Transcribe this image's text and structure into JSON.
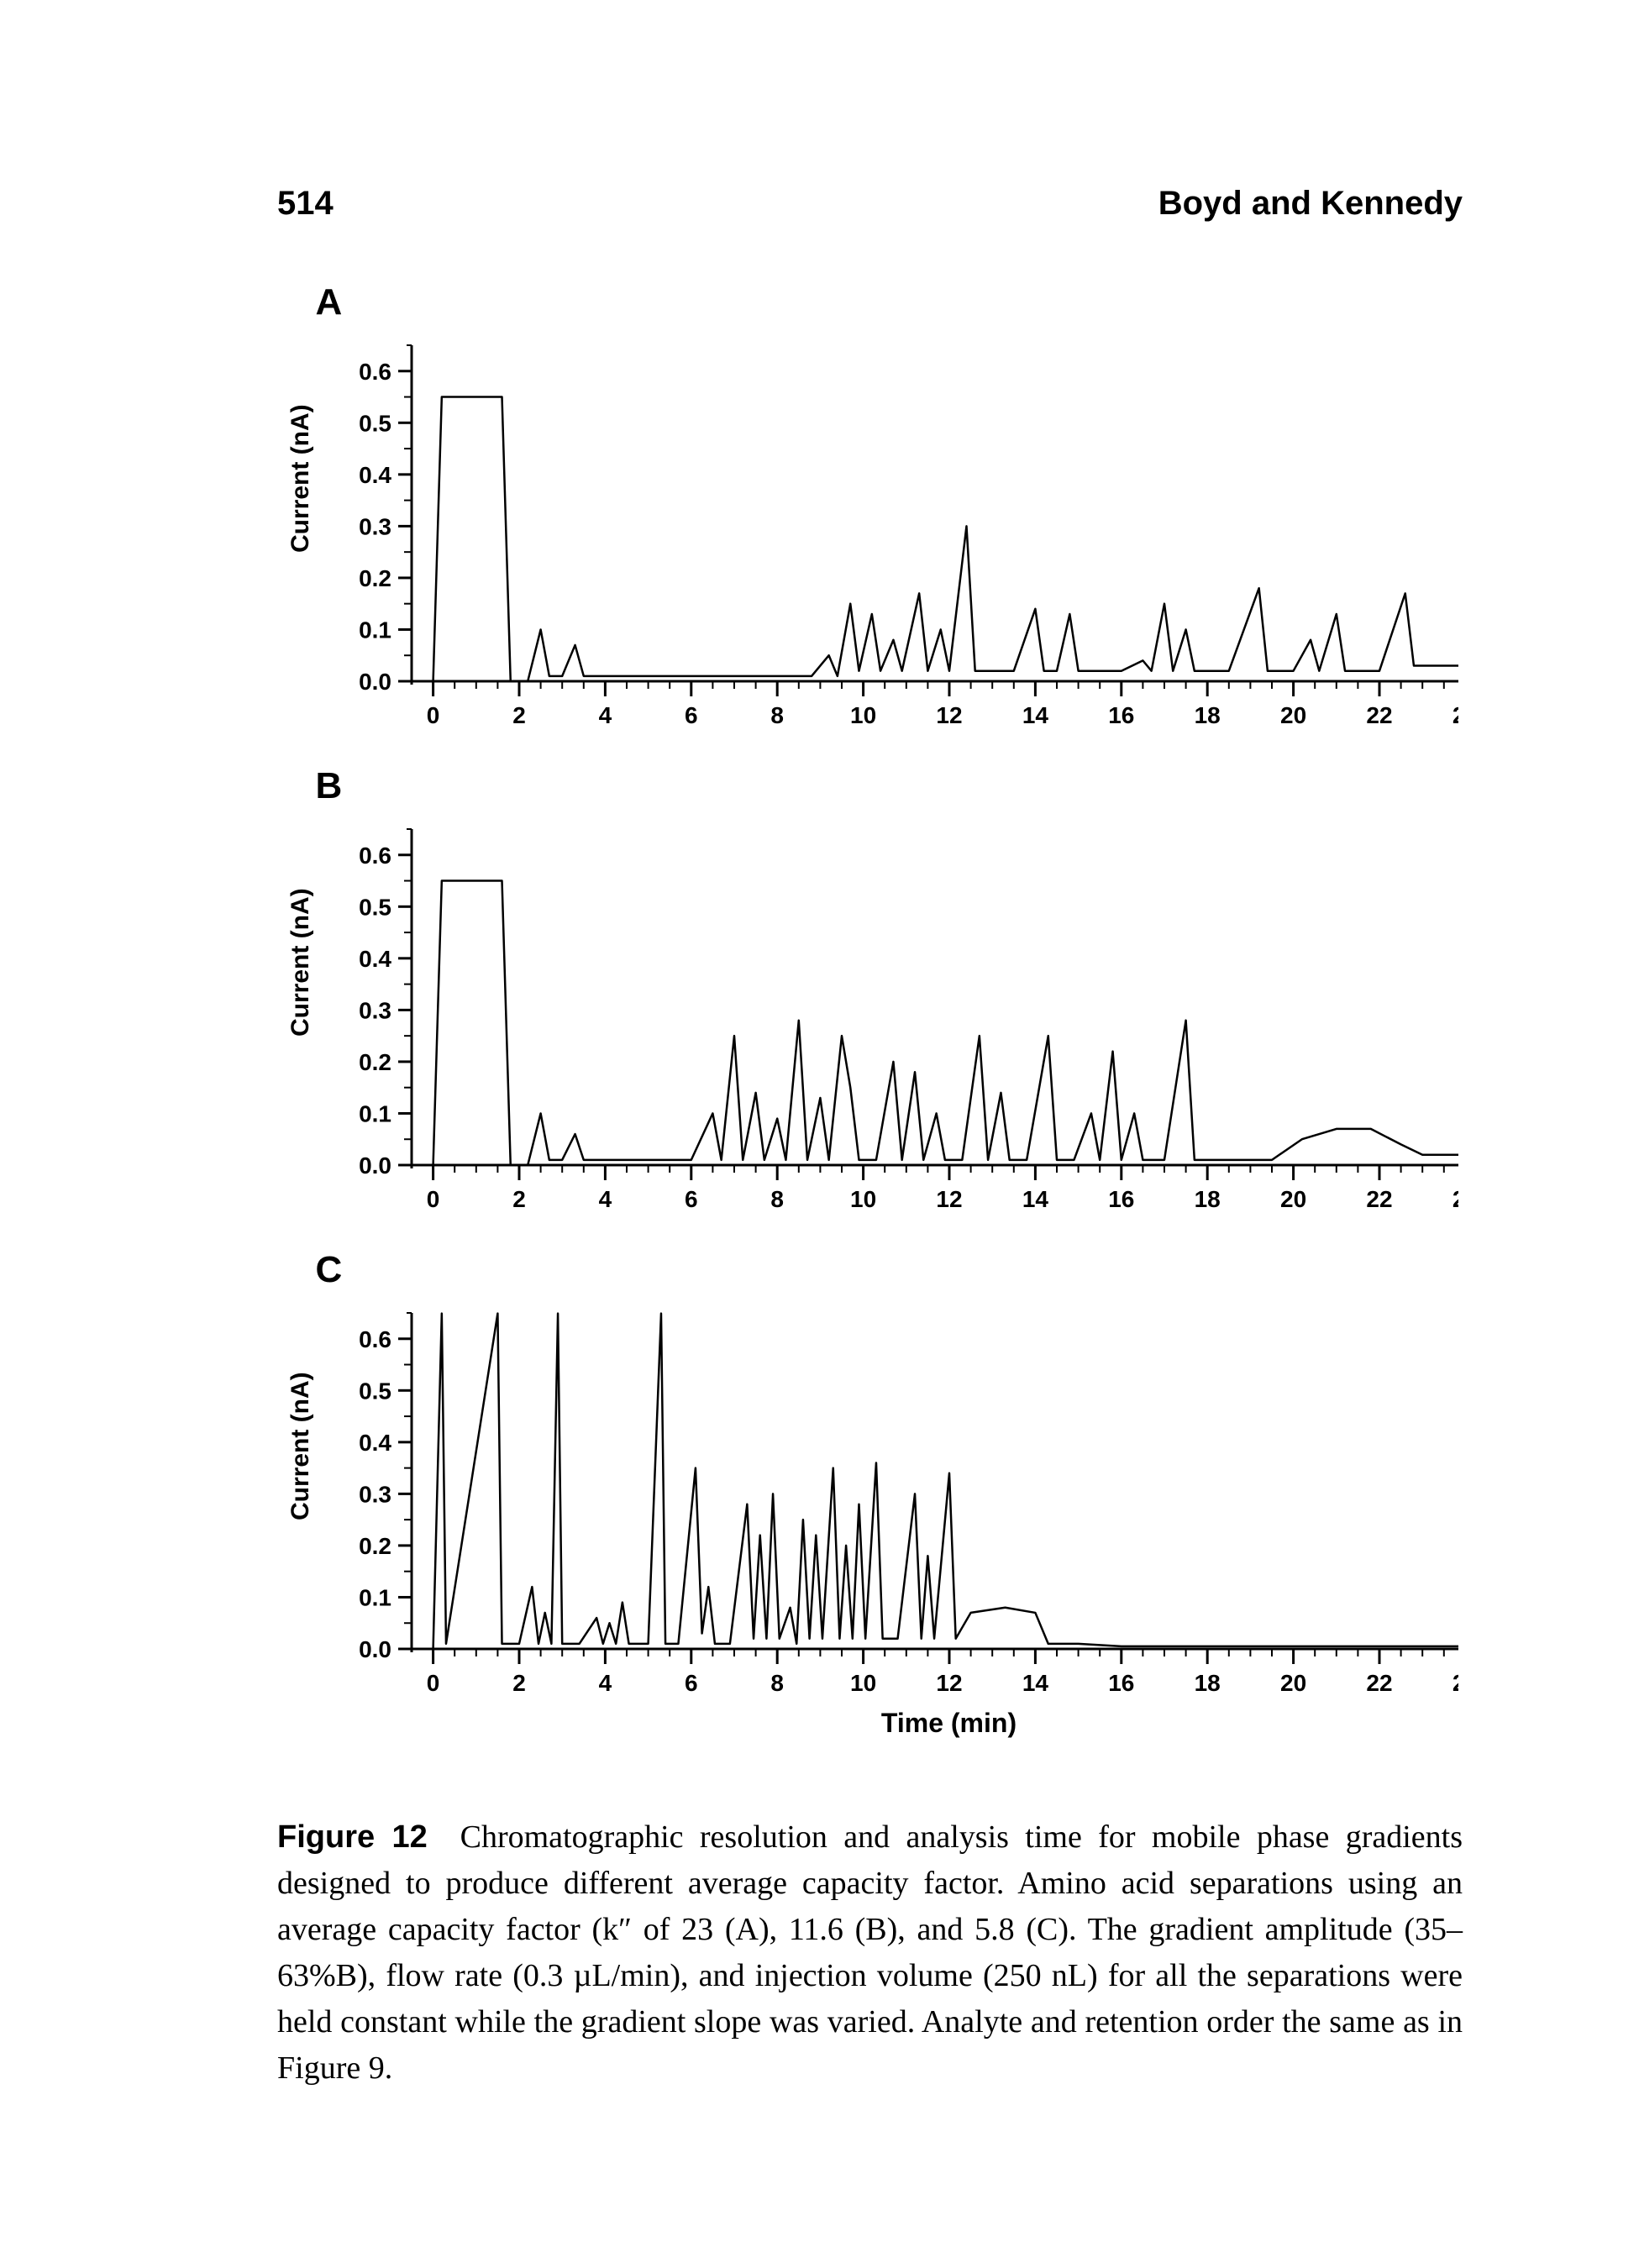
{
  "header": {
    "page_number": "514",
    "running_head": "Boyd and Kennedy"
  },
  "figure": {
    "x_axis_label": "Time (min)",
    "y_axis_label": "Current (nA)",
    "stroke_color": "#000000",
    "background_color": "#ffffff",
    "axis_width": 3,
    "trace_width": 2.5,
    "label_fontsize": 30,
    "tick_fontsize": 28,
    "panel_label_fontsize": 44,
    "x_axis": {
      "min": -0.5,
      "max": 24.5,
      "major_step": 2,
      "minor_step": 0.5
    },
    "y_axis": {
      "min": 0.0,
      "max": 0.65,
      "major_step": 0.1,
      "minor_step": 0.05
    },
    "panels": [
      {
        "label": "A",
        "trace": [
          [
            -0.3,
            0.0
          ],
          [
            0.0,
            0.0
          ],
          [
            0.2,
            0.55
          ],
          [
            1.6,
            0.55
          ],
          [
            1.8,
            0.0
          ],
          [
            2.2,
            0.0
          ],
          [
            2.5,
            0.1
          ],
          [
            2.7,
            0.01
          ],
          [
            3.0,
            0.01
          ],
          [
            3.3,
            0.07
          ],
          [
            3.5,
            0.01
          ],
          [
            4.0,
            0.01
          ],
          [
            5.0,
            0.01
          ],
          [
            6.0,
            0.01
          ],
          [
            7.0,
            0.01
          ],
          [
            8.0,
            0.01
          ],
          [
            8.8,
            0.01
          ],
          [
            9.2,
            0.05
          ],
          [
            9.4,
            0.01
          ],
          [
            9.7,
            0.15
          ],
          [
            9.9,
            0.02
          ],
          [
            10.2,
            0.13
          ],
          [
            10.4,
            0.02
          ],
          [
            10.7,
            0.08
          ],
          [
            10.9,
            0.02
          ],
          [
            11.3,
            0.17
          ],
          [
            11.5,
            0.02
          ],
          [
            11.8,
            0.1
          ],
          [
            12.0,
            0.02
          ],
          [
            12.4,
            0.3
          ],
          [
            12.6,
            0.02
          ],
          [
            13.0,
            0.02
          ],
          [
            13.5,
            0.02
          ],
          [
            14.0,
            0.14
          ],
          [
            14.2,
            0.02
          ],
          [
            14.5,
            0.02
          ],
          [
            14.8,
            0.13
          ],
          [
            15.0,
            0.02
          ],
          [
            15.5,
            0.02
          ],
          [
            16.0,
            0.02
          ],
          [
            16.5,
            0.04
          ],
          [
            16.7,
            0.02
          ],
          [
            17.0,
            0.15
          ],
          [
            17.2,
            0.02
          ],
          [
            17.5,
            0.1
          ],
          [
            17.7,
            0.02
          ],
          [
            18.0,
            0.02
          ],
          [
            18.5,
            0.02
          ],
          [
            19.2,
            0.18
          ],
          [
            19.4,
            0.02
          ],
          [
            20.0,
            0.02
          ],
          [
            20.4,
            0.08
          ],
          [
            20.6,
            0.02
          ],
          [
            21.0,
            0.13
          ],
          [
            21.2,
            0.02
          ],
          [
            21.6,
            0.02
          ],
          [
            22.0,
            0.02
          ],
          [
            22.6,
            0.17
          ],
          [
            22.8,
            0.03
          ],
          [
            23.4,
            0.03
          ],
          [
            24.0,
            0.03
          ],
          [
            24.3,
            0.03
          ]
        ]
      },
      {
        "label": "B",
        "trace": [
          [
            -0.3,
            0.0
          ],
          [
            0.0,
            0.0
          ],
          [
            0.2,
            0.55
          ],
          [
            1.6,
            0.55
          ],
          [
            1.8,
            0.0
          ],
          [
            2.2,
            0.0
          ],
          [
            2.5,
            0.1
          ],
          [
            2.7,
            0.01
          ],
          [
            3.0,
            0.01
          ],
          [
            3.3,
            0.06
          ],
          [
            3.5,
            0.01
          ],
          [
            4.0,
            0.01
          ],
          [
            5.0,
            0.01
          ],
          [
            6.0,
            0.01
          ],
          [
            6.5,
            0.1
          ],
          [
            6.7,
            0.01
          ],
          [
            7.0,
            0.25
          ],
          [
            7.2,
            0.01
          ],
          [
            7.5,
            0.14
          ],
          [
            7.7,
            0.01
          ],
          [
            8.0,
            0.09
          ],
          [
            8.2,
            0.01
          ],
          [
            8.5,
            0.28
          ],
          [
            8.7,
            0.01
          ],
          [
            9.0,
            0.13
          ],
          [
            9.2,
            0.01
          ],
          [
            9.5,
            0.25
          ],
          [
            9.7,
            0.15
          ],
          [
            9.9,
            0.01
          ],
          [
            10.3,
            0.01
          ],
          [
            10.7,
            0.2
          ],
          [
            10.9,
            0.01
          ],
          [
            11.2,
            0.18
          ],
          [
            11.4,
            0.01
          ],
          [
            11.7,
            0.1
          ],
          [
            11.9,
            0.01
          ],
          [
            12.3,
            0.01
          ],
          [
            12.7,
            0.25
          ],
          [
            12.9,
            0.01
          ],
          [
            13.2,
            0.14
          ],
          [
            13.4,
            0.01
          ],
          [
            13.8,
            0.01
          ],
          [
            14.3,
            0.25
          ],
          [
            14.5,
            0.01
          ],
          [
            14.9,
            0.01
          ],
          [
            15.3,
            0.1
          ],
          [
            15.5,
            0.01
          ],
          [
            15.8,
            0.22
          ],
          [
            16.0,
            0.01
          ],
          [
            16.3,
            0.1
          ],
          [
            16.5,
            0.01
          ],
          [
            17.0,
            0.01
          ],
          [
            17.5,
            0.28
          ],
          [
            17.7,
            0.01
          ],
          [
            18.2,
            0.01
          ],
          [
            19.0,
            0.01
          ],
          [
            19.5,
            0.01
          ],
          [
            20.2,
            0.05
          ],
          [
            21.0,
            0.07
          ],
          [
            21.8,
            0.07
          ],
          [
            22.5,
            0.04
          ],
          [
            23.0,
            0.02
          ],
          [
            24.0,
            0.02
          ],
          [
            24.3,
            0.02
          ]
        ]
      },
      {
        "label": "C",
        "trace": [
          [
            -0.3,
            0.0
          ],
          [
            0.0,
            0.0
          ],
          [
            0.2,
            0.95
          ],
          [
            0.3,
            0.01
          ],
          [
            1.5,
            0.95
          ],
          [
            1.6,
            0.01
          ],
          [
            2.0,
            0.01
          ],
          [
            2.3,
            0.12
          ],
          [
            2.45,
            0.01
          ],
          [
            2.6,
            0.07
          ],
          [
            2.75,
            0.01
          ],
          [
            2.9,
            0.95
          ],
          [
            3.0,
            0.01
          ],
          [
            3.4,
            0.01
          ],
          [
            3.8,
            0.06
          ],
          [
            3.95,
            0.01
          ],
          [
            4.1,
            0.05
          ],
          [
            4.25,
            0.01
          ],
          [
            4.4,
            0.09
          ],
          [
            4.55,
            0.01
          ],
          [
            5.0,
            0.01
          ],
          [
            5.3,
            0.95
          ],
          [
            5.4,
            0.01
          ],
          [
            5.7,
            0.01
          ],
          [
            6.1,
            0.35
          ],
          [
            6.25,
            0.03
          ],
          [
            6.4,
            0.12
          ],
          [
            6.55,
            0.01
          ],
          [
            6.9,
            0.01
          ],
          [
            7.3,
            0.28
          ],
          [
            7.45,
            0.02
          ],
          [
            7.6,
            0.22
          ],
          [
            7.75,
            0.02
          ],
          [
            7.9,
            0.3
          ],
          [
            8.05,
            0.02
          ],
          [
            8.3,
            0.08
          ],
          [
            8.45,
            0.01
          ],
          [
            8.6,
            0.25
          ],
          [
            8.75,
            0.02
          ],
          [
            8.9,
            0.22
          ],
          [
            9.05,
            0.02
          ],
          [
            9.3,
            0.35
          ],
          [
            9.45,
            0.02
          ],
          [
            9.6,
            0.2
          ],
          [
            9.75,
            0.02
          ],
          [
            9.9,
            0.28
          ],
          [
            10.05,
            0.02
          ],
          [
            10.3,
            0.36
          ],
          [
            10.45,
            0.02
          ],
          [
            10.8,
            0.02
          ],
          [
            11.2,
            0.3
          ],
          [
            11.35,
            0.02
          ],
          [
            11.5,
            0.18
          ],
          [
            11.65,
            0.02
          ],
          [
            12.0,
            0.34
          ],
          [
            12.15,
            0.02
          ],
          [
            12.5,
            0.07
          ],
          [
            13.3,
            0.08
          ],
          [
            14.0,
            0.07
          ],
          [
            14.3,
            0.01
          ],
          [
            15.0,
            0.01
          ],
          [
            16.0,
            0.005
          ],
          [
            17.0,
            0.005
          ],
          [
            18.0,
            0.005
          ],
          [
            19.0,
            0.005
          ],
          [
            20.0,
            0.005
          ],
          [
            21.0,
            0.005
          ],
          [
            22.0,
            0.005
          ],
          [
            23.0,
            0.005
          ],
          [
            24.0,
            0.005
          ],
          [
            24.3,
            0.005
          ]
        ]
      }
    ]
  },
  "caption": {
    "label": "Figure 12",
    "text": "Chromatographic resolution and analysis time for mobile phase gradients designed to produce different average capacity factor. Amino acid separations using an average capacity factor (k″ of 23 (A), 11.6 (B), and 5.8 (C). The gradient amplitude (35–63%B), flow rate (0.3 µL/min), and injection volume (250 nL) for all the separations were held constant while the gradient slope was varied. Analyte and retention order the same as in Figure 9."
  }
}
